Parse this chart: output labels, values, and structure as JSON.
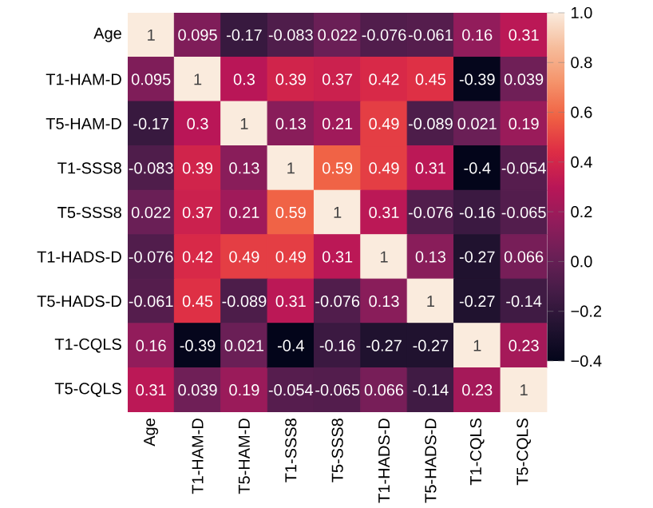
{
  "chart_data": {
    "type": "heatmap",
    "categories": [
      "Age",
      "T1-HAM-D",
      "T5-HAM-D",
      "T1-SSS8",
      "T5-SSS8",
      "T1-HADS-D",
      "T5-HADS-D",
      "T1-CQLS",
      "T5-CQLS"
    ],
    "y_categories": [
      "Age",
      "T1-HAM-D",
      "T5-HAM-D",
      "T1-SSS8",
      "T5-SSS8",
      "T1-HADS-D",
      "T5-HADS-D",
      "T1-CQLS",
      "T5-CQLS"
    ],
    "cells": [
      [
        1,
        0.095,
        -0.17,
        -0.083,
        0.022,
        -0.076,
        -0.061,
        0.16,
        0.31
      ],
      [
        0.095,
        1,
        0.3,
        0.39,
        0.37,
        0.42,
        0.45,
        -0.39,
        0.039
      ],
      [
        -0.17,
        0.3,
        1,
        0.13,
        0.21,
        0.49,
        -0.089,
        0.021,
        0.19
      ],
      [
        -0.083,
        0.39,
        0.13,
        1,
        0.59,
        0.49,
        0.31,
        -0.4,
        -0.054
      ],
      [
        0.022,
        0.37,
        0.21,
        0.59,
        1,
        0.31,
        -0.076,
        -0.16,
        -0.065
      ],
      [
        -0.076,
        0.42,
        0.49,
        0.49,
        0.31,
        1,
        0.13,
        -0.27,
        0.066
      ],
      [
        -0.061,
        0.45,
        -0.089,
        0.31,
        -0.076,
        0.13,
        1,
        -0.27,
        -0.14
      ],
      [
        0.16,
        -0.39,
        0.021,
        -0.4,
        -0.16,
        -0.27,
        -0.27,
        1,
        0.23
      ],
      [
        0.31,
        0.039,
        0.19,
        -0.054,
        -0.065,
        0.066,
        -0.14,
        0.23,
        1
      ]
    ],
    "clim": [
      -0.4,
      1
    ],
    "cticks": [
      {
        "value": -0.4,
        "label": "−0.4"
      },
      {
        "value": -0.2,
        "label": "−0.2"
      },
      {
        "value": 0,
        "label": "0.0"
      },
      {
        "value": 0.2,
        "label": "0.2"
      },
      {
        "value": 0.4,
        "label": "0.4"
      },
      {
        "value": 0.6,
        "label": "0.6"
      },
      {
        "value": 0.8,
        "label": "0.8"
      },
      {
        "value": 1,
        "label": "1.0"
      }
    ],
    "data_labels": true
  }
}
